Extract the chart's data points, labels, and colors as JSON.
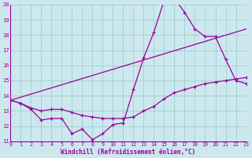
{
  "xlabel": "Windchill (Refroidissement éolien,°C)",
  "bg_color": "#cce8ee",
  "grid_color": "#9ecfcf",
  "line_color": "#990099",
  "xlim": [
    0,
    23
  ],
  "ylim": [
    11,
    20
  ],
  "xticks": [
    0,
    1,
    2,
    3,
    4,
    5,
    6,
    7,
    8,
    9,
    10,
    11,
    12,
    13,
    14,
    15,
    16,
    17,
    18,
    19,
    20,
    21,
    22,
    23
  ],
  "yticks": [
    11,
    12,
    13,
    14,
    15,
    16,
    17,
    18,
    19,
    20
  ],
  "line1_x": [
    0,
    1,
    2,
    3,
    4,
    5,
    6,
    7,
    8,
    9,
    10,
    11,
    12,
    13,
    14,
    15,
    16,
    17,
    18,
    19,
    20,
    21,
    22,
    23
  ],
  "line1_y": [
    13.7,
    13.5,
    13.1,
    12.4,
    12.5,
    12.5,
    11.5,
    11.8,
    11.1,
    11.5,
    12.1,
    12.2,
    14.4,
    16.5,
    18.2,
    20.3,
    20.4,
    19.5,
    18.4,
    17.9,
    17.9,
    16.4,
    15.0,
    14.8
  ],
  "line2_x": [
    0,
    23
  ],
  "line2_y": [
    13.7,
    18.4
  ],
  "line3_x": [
    0,
    1,
    2,
    3,
    4,
    5,
    6,
    7,
    8,
    9,
    10,
    11,
    12,
    13,
    14,
    15,
    16,
    17,
    18,
    19,
    20,
    21,
    22,
    23
  ],
  "line3_y": [
    13.7,
    13.5,
    13.2,
    13.0,
    13.1,
    13.1,
    12.9,
    12.7,
    12.6,
    12.5,
    12.5,
    12.5,
    12.6,
    13.0,
    13.3,
    13.8,
    14.2,
    14.4,
    14.6,
    14.8,
    14.9,
    15.0,
    15.1,
    15.2
  ]
}
